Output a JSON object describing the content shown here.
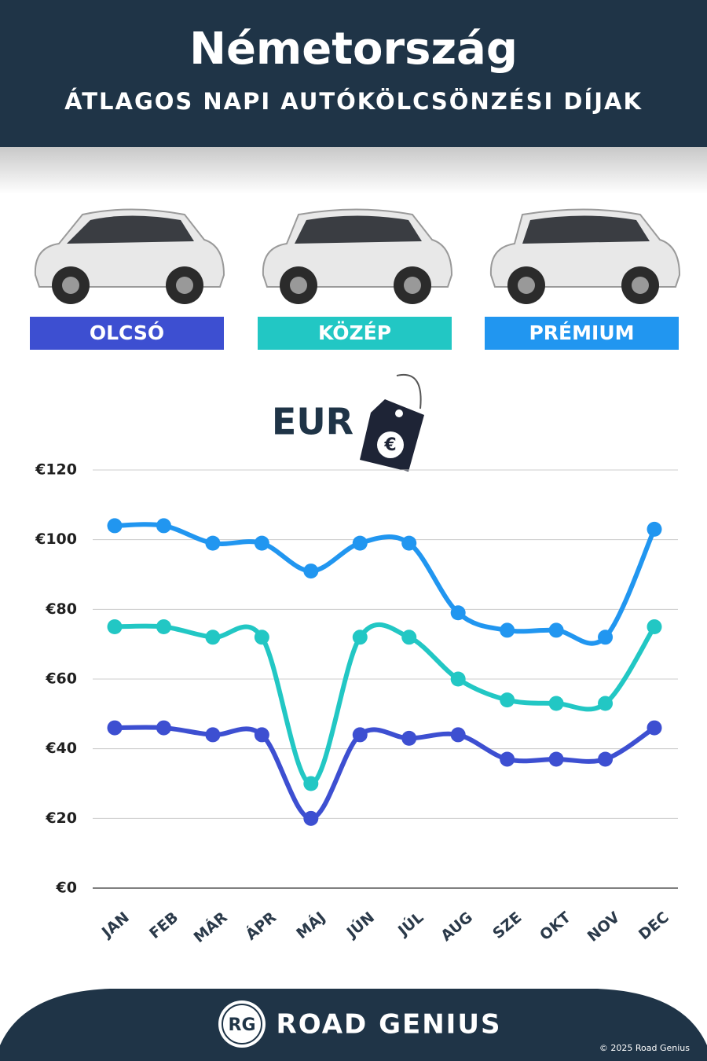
{
  "chart_data": {
    "type": "line",
    "title": "Németország",
    "subtitle": "ÁTLAGOS NAPI AUTÓKÖLCSÖNZÉSI DÍJAK",
    "currency_label": "EUR",
    "categories": [
      "JAN",
      "FEB",
      "MÁR",
      "ÁPR",
      "MÁJ",
      "JÚN",
      "JÚL",
      "AUG",
      "SZE",
      "OKT",
      "NOV",
      "DEC"
    ],
    "series": [
      {
        "name": "OLCSÓ",
        "color": "#3d4fd1",
        "values": [
          46,
          46,
          44,
          44,
          20,
          44,
          43,
          44,
          37,
          37,
          37,
          46
        ]
      },
      {
        "name": "KÖZÉP",
        "color": "#22c7c4",
        "values": [
          75,
          75,
          72,
          72,
          30,
          72,
          72,
          60,
          54,
          53,
          53,
          75
        ]
      },
      {
        "name": "PRÉMIUM",
        "color": "#2196f0",
        "values": [
          104,
          104,
          99,
          99,
          91,
          99,
          99,
          79,
          74,
          74,
          72,
          103
        ]
      }
    ],
    "ylim": [
      0,
      120
    ],
    "yticks": [
      {
        "value": 0,
        "label": "€0"
      },
      {
        "value": 20,
        "label": "€20"
      },
      {
        "value": 40,
        "label": "€40"
      },
      {
        "value": 60,
        "label": "€60"
      },
      {
        "value": 80,
        "label": "€80"
      },
      {
        "value": 100,
        "label": "€100"
      },
      {
        "value": 120,
        "label": "€120"
      }
    ],
    "grid": true,
    "brand": "ROAD GENIUS",
    "logo": "RG",
    "copyright": "© 2025 Road Genius"
  }
}
